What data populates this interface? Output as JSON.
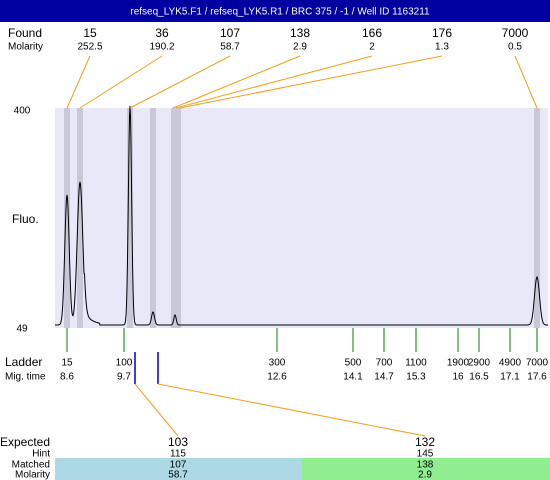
{
  "title": "refseq_LYK5.F1 / refseq_LYK5.R1 / BRC 375 / -1 / Well ID 1163211",
  "found": {
    "label": "Found",
    "sublabel": "Molarity",
    "peaks": [
      {
        "size": 15,
        "molarity": 252.5
      },
      {
        "size": 36,
        "molarity": 190.2
      },
      {
        "size": 107,
        "molarity": 58.7
      },
      {
        "size": 138,
        "molarity": 2.9
      },
      {
        "size": 166,
        "molarity": 2
      },
      {
        "size": 176,
        "molarity": 1.3
      },
      {
        "size": 7000,
        "molarity": 0.5
      }
    ]
  },
  "plot": {
    "ylabel": "Fluo.",
    "ymax": 400,
    "ymin": 49
  },
  "ladder": {
    "label": "Ladder",
    "sublabel": "Mig. time",
    "bands": [
      {
        "size": 15,
        "time": 8.6
      },
      {
        "size": 100,
        "time": 9.7
      },
      {
        "size": 300,
        "time": 12.6
      },
      {
        "size": 500,
        "time": 14.1
      },
      {
        "size": 700,
        "time": 14.7
      },
      {
        "size": 1100,
        "time": 15.3
      },
      {
        "size": 1900,
        "time": 16
      },
      {
        "size": 2900,
        "time": 16.5
      },
      {
        "size": 4900,
        "time": 17.1
      },
      {
        "size": 7000,
        "time": 17.6
      }
    ]
  },
  "expected": {
    "labels": [
      "Expected",
      "Hint",
      "Matched",
      "Molarity"
    ],
    "items": [
      {
        "expected": 103,
        "hint": 115,
        "matched": 107,
        "molarity": 58.7
      },
      {
        "expected": 132,
        "hint": 145,
        "matched": 138,
        "molarity": 2.9
      }
    ]
  }
}
